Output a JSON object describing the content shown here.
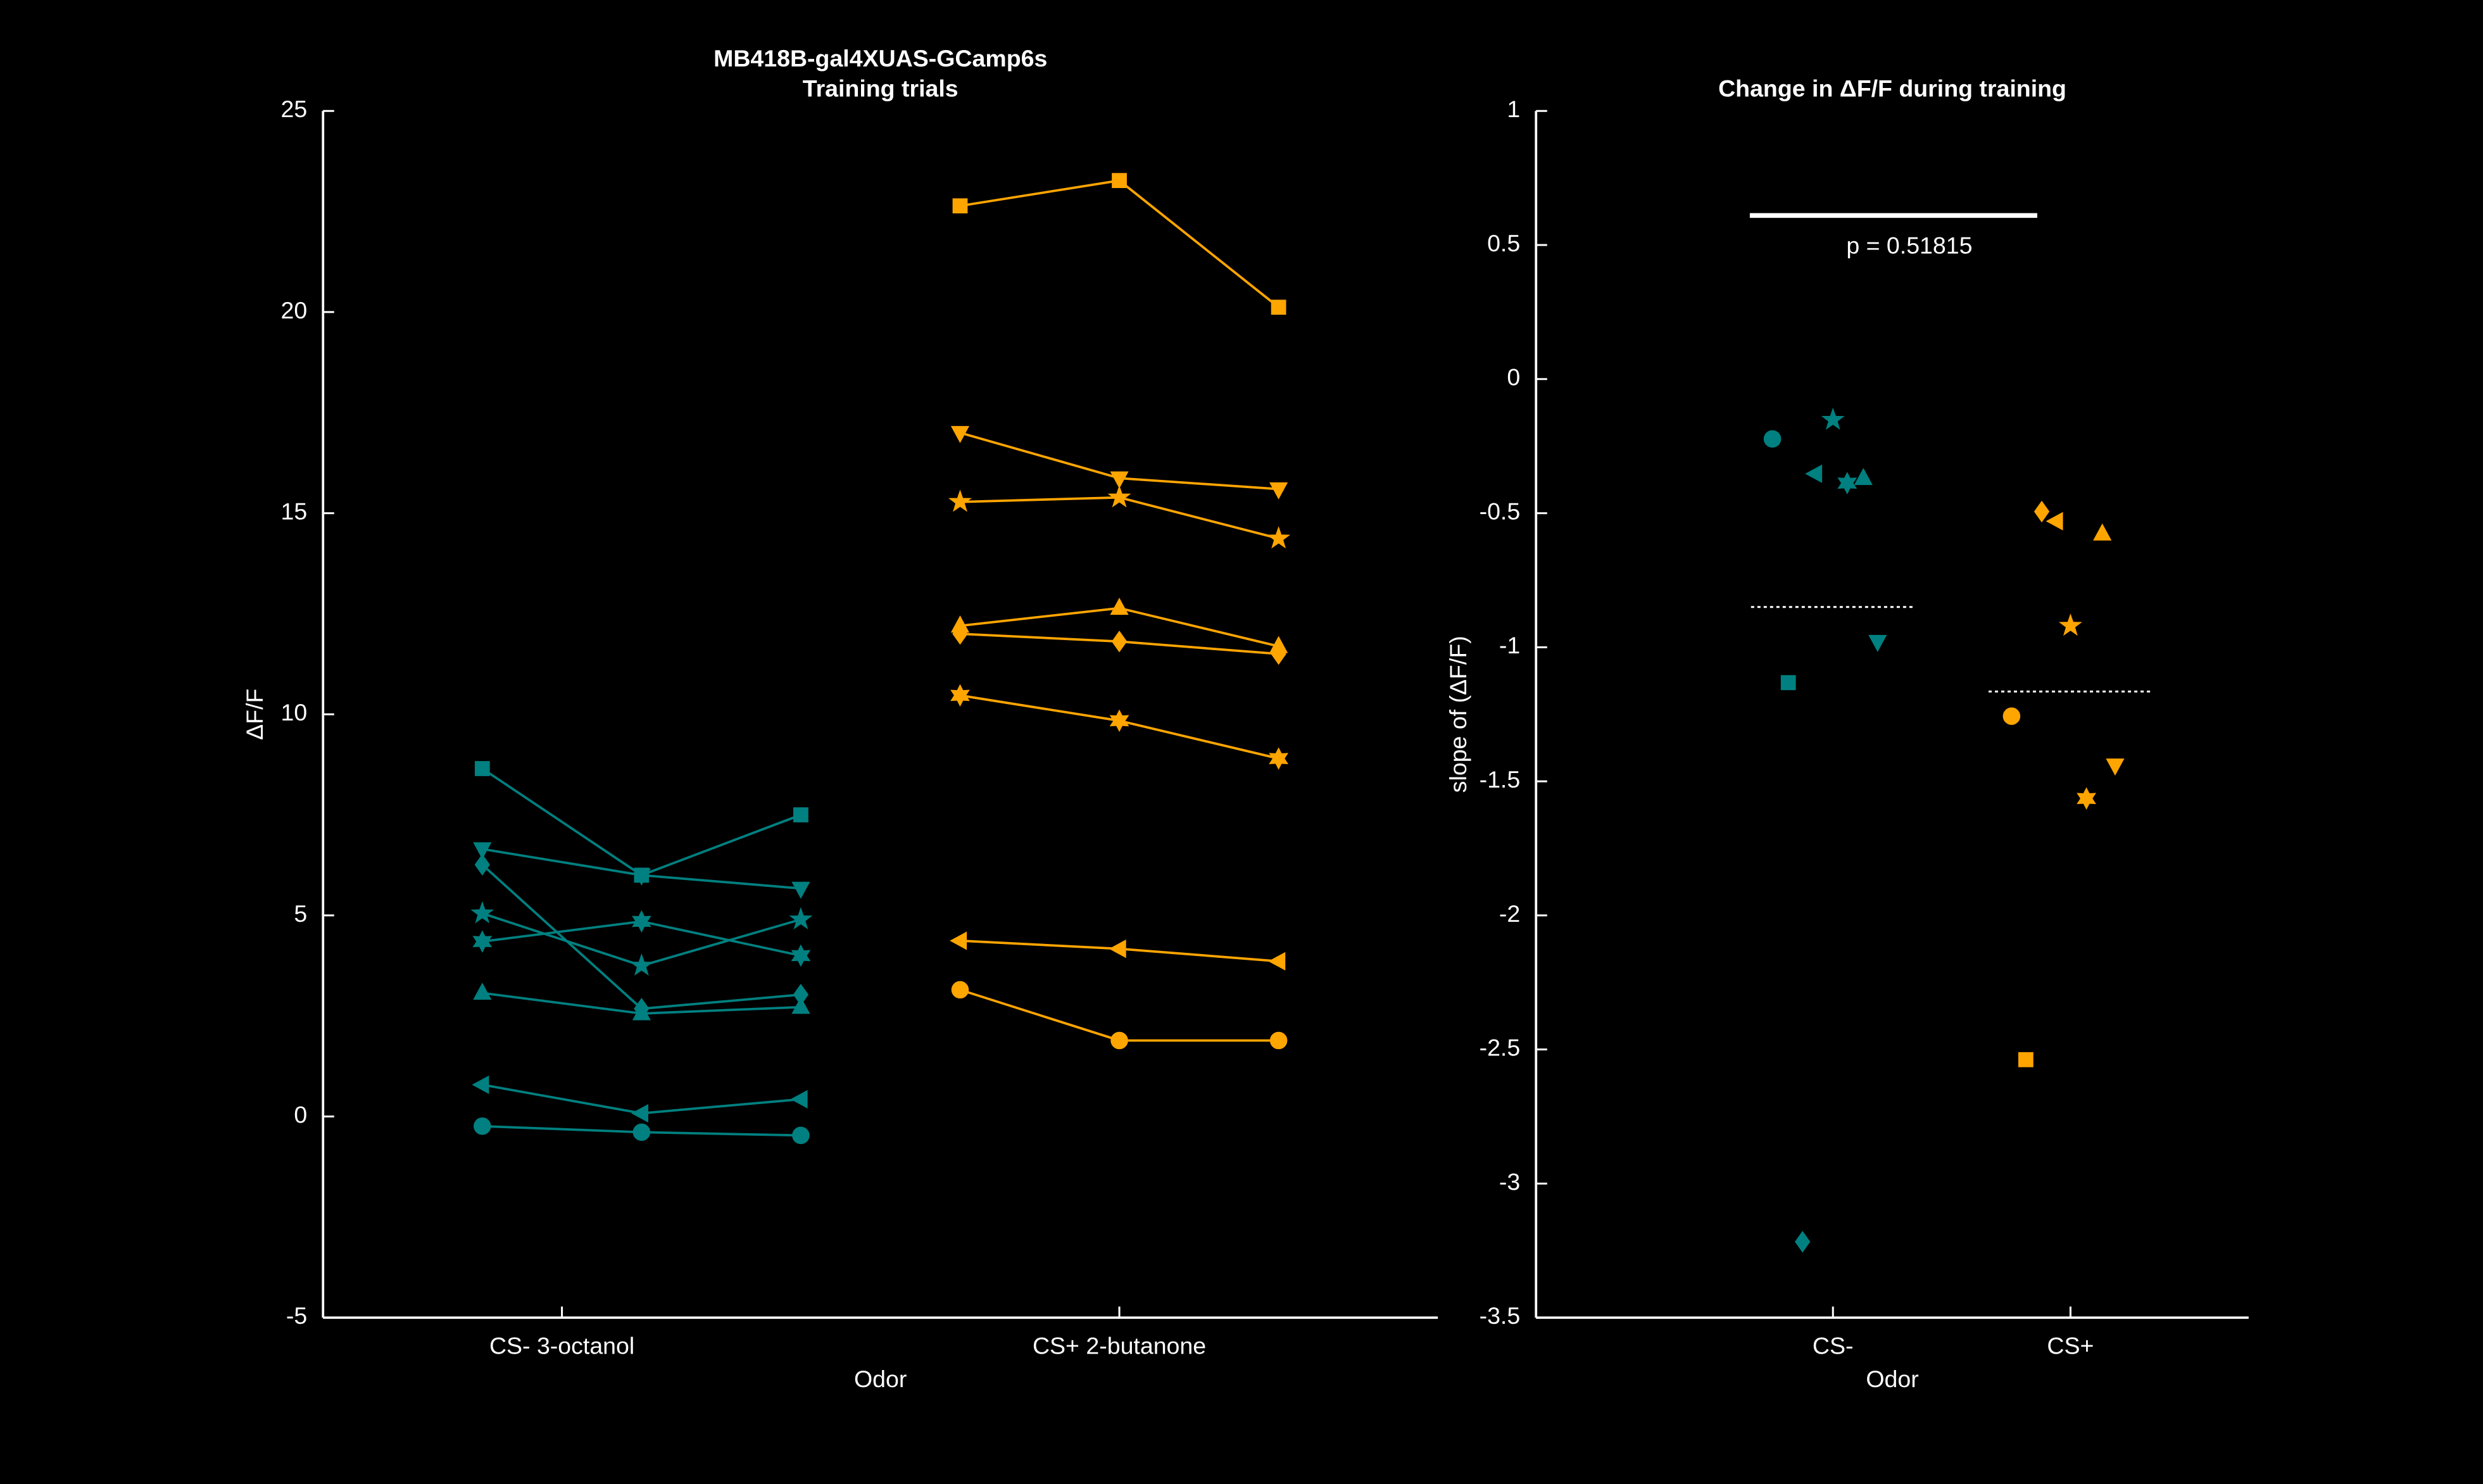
{
  "chart_data": [
    {
      "type": "line",
      "title": "MB418B-gal4XUAS-GCamp6s",
      "subtitle": "Training trials",
      "xlabel": "Odor",
      "ylabel": "ΔF/F",
      "xlim": [
        0,
        7
      ],
      "xticks": [
        {
          "value": 1.5,
          "label": "CS- 3-octanol"
        },
        {
          "value": 5,
          "label": "CS+ 2-butanone"
        }
      ],
      "ylim": [
        -5,
        25
      ],
      "yticks": [
        -5,
        0,
        5,
        10,
        15,
        20,
        25
      ],
      "series": [
        {
          "color": "#008080",
          "marker": "square",
          "x": [
            1,
            2,
            3
          ],
          "values": [
            8.65,
            6.0,
            7.5
          ]
        },
        {
          "color": "#008080",
          "marker": "triangle-down",
          "x": [
            1,
            2,
            3
          ],
          "values": [
            6.65,
            6.0,
            5.67
          ]
        },
        {
          "color": "#008080",
          "marker": "diamond",
          "x": [
            1,
            2,
            3
          ],
          "values": [
            6.26,
            2.68,
            3.03
          ]
        },
        {
          "color": "#008080",
          "marker": "pentagram",
          "x": [
            1,
            2,
            3
          ],
          "values": [
            5.05,
            3.75,
            4.9
          ]
        },
        {
          "color": "#008080",
          "marker": "hexagram",
          "x": [
            1,
            2,
            3
          ],
          "values": [
            4.35,
            4.85,
            4.0
          ]
        },
        {
          "color": "#008080",
          "marker": "triangle-up",
          "x": [
            1,
            2,
            3
          ],
          "values": [
            3.07,
            2.56,
            2.72
          ]
        },
        {
          "color": "#008080",
          "marker": "triangle-left",
          "x": [
            1,
            2,
            3
          ],
          "values": [
            0.79,
            0.08,
            0.43
          ]
        },
        {
          "color": "#008080",
          "marker": "circle",
          "x": [
            1,
            2,
            3
          ],
          "values": [
            -0.24,
            -0.39,
            -0.47
          ]
        },
        {
          "color": "#ffa500",
          "marker": "square",
          "x": [
            4,
            5,
            6
          ],
          "values": [
            22.64,
            23.27,
            20.12
          ]
        },
        {
          "color": "#ffa500",
          "marker": "triangle-down",
          "x": [
            4,
            5,
            6
          ],
          "values": [
            17.0,
            15.87,
            15.6
          ]
        },
        {
          "color": "#ffa500",
          "marker": "pentagram",
          "x": [
            4,
            5,
            6
          ],
          "values": [
            15.28,
            15.39,
            14.37
          ]
        },
        {
          "color": "#ffa500",
          "marker": "triangle-up",
          "x": [
            4,
            5,
            6
          ],
          "values": [
            12.2,
            12.64,
            11.69
          ]
        },
        {
          "color": "#ffa500",
          "marker": "diamond",
          "x": [
            4,
            5,
            6
          ],
          "values": [
            12.0,
            11.81,
            11.5
          ]
        },
        {
          "color": "#ffa500",
          "marker": "hexagram",
          "x": [
            4,
            5,
            6
          ],
          "values": [
            10.47,
            9.84,
            8.9
          ]
        },
        {
          "color": "#ffa500",
          "marker": "triangle-left",
          "x": [
            4,
            5,
            6
          ],
          "values": [
            4.37,
            4.17,
            3.86
          ]
        },
        {
          "color": "#ffa500",
          "marker": "circle",
          "x": [
            4,
            5,
            6
          ],
          "values": [
            3.15,
            1.89,
            1.89
          ]
        }
      ]
    },
    {
      "type": "scatter",
      "title": "Change in ΔF/F during training",
      "xlabel": "Odor",
      "ylabel": "slope of (ΔF/F)",
      "xlim": [
        -0.25,
        2.75
      ],
      "xticks": [
        {
          "value": 1,
          "label": "CS-"
        },
        {
          "value": 2,
          "label": "CS+"
        }
      ],
      "ylim": [
        -3.5,
        1
      ],
      "yticks": [
        -3.5,
        -3,
        -2.5,
        -2,
        -1.5,
        -1,
        -0.5,
        0,
        0.5,
        1
      ],
      "series": [
        {
          "color": "#008080",
          "mean": -0.85,
          "markers": [
            "circle",
            "pentagram",
            "triangle-left",
            "hexagram",
            "triangle-up",
            "triangle-down",
            "square",
            "diamond"
          ],
          "x": [
            0.745,
            1.0,
            0.926,
            1.06,
            1.128,
            1.188,
            0.812,
            0.872
          ],
          "values": [
            -0.223,
            -0.152,
            -0.353,
            -0.388,
            -0.37,
            -0.979,
            -1.132,
            -3.217
          ]
        },
        {
          "color": "#ffa500",
          "mean": -1.165,
          "markers": [
            "diamond",
            "triangle-left",
            "triangle-up",
            "pentagram",
            "circle",
            "triangle-down",
            "hexagram",
            "square"
          ],
          "x": [
            1.879,
            1.94,
            2.134,
            2.0,
            1.752,
            2.188,
            2.067,
            1.812
          ],
          "values": [
            -0.494,
            -0.53,
            -0.577,
            -0.92,
            -1.257,
            -1.44,
            -1.564,
            -2.538
          ]
        }
      ],
      "significance": {
        "label": "p = 0.51815",
        "y": 0.61,
        "x": [
          0.65,
          1.86
        ]
      }
    }
  ]
}
